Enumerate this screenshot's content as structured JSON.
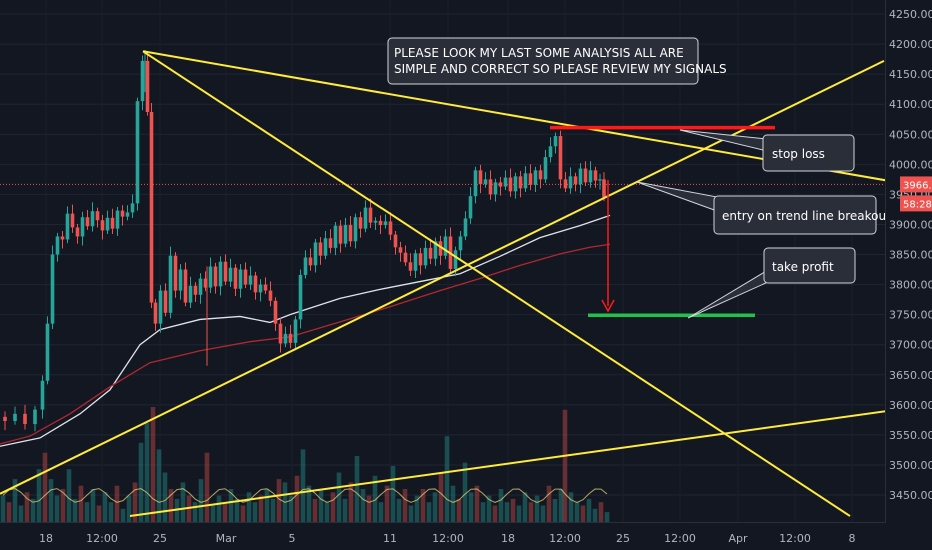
{
  "chart_data": {
    "type": "candlestick",
    "y_axis": {
      "ticks": [
        4250,
        4200,
        4150,
        4100,
        4050,
        4000,
        3950,
        3900,
        3850,
        3800,
        3750,
        3700,
        3650,
        3600,
        3550,
        3500,
        3450
      ],
      "ylim": [
        3415,
        4270
      ],
      "position": "right"
    },
    "x_axis": {
      "labels": [
        "18",
        "12:00",
        "25",
        "Mar",
        "5",
        "11",
        "12:00",
        "18",
        "12:00",
        "25",
        "12:00",
        "Apr",
        "12:00",
        "8"
      ]
    },
    "price_markers": [
      {
        "label": "3966.54",
        "value": 3966.54,
        "color": "#ef5350"
      },
      {
        "label": "58:28",
        "value": 3935,
        "color": "#ef5350"
      }
    ],
    "current_price": 3966.54,
    "trend_lines": [
      {
        "from": [
          143,
          4188
        ],
        "to": [
          932,
          3960
        ],
        "color": "#ffeb3b"
      },
      {
        "from": [
          143,
          4188
        ],
        "to": [
          850,
          3415
        ],
        "color": "#ffeb3b"
      },
      {
        "from": [
          0,
          3452
        ],
        "to": [
          884,
          4172
        ],
        "color": "#ffeb3b"
      },
      {
        "from": [
          130,
          3415
        ],
        "to": [
          932,
          3600
        ],
        "color": "#ffeb3b"
      }
    ],
    "levels": [
      {
        "name": "stop loss",
        "value": 4061,
        "color": "#ff1a1a",
        "x_range": [
          550,
          775
        ]
      },
      {
        "name": "take profit",
        "value": 3749,
        "color": "#22c24a",
        "x_range": [
          588,
          755
        ]
      }
    ],
    "moving_averages": [
      {
        "color": "#e0e3eb",
        "points": [
          [
            0,
            3531
          ],
          [
            40,
            3545
          ],
          [
            80,
            3585
          ],
          [
            110,
            3625
          ],
          [
            140,
            3700
          ],
          [
            160,
            3725
          ],
          [
            200,
            3742
          ],
          [
            240,
            3747
          ],
          [
            270,
            3737
          ],
          [
            290,
            3750
          ],
          [
            340,
            3777
          ],
          [
            380,
            3792
          ],
          [
            420,
            3805
          ],
          [
            460,
            3818
          ],
          [
            500,
            3847
          ],
          [
            540,
            3878
          ],
          [
            580,
            3898
          ],
          [
            610,
            3915
          ]
        ]
      },
      {
        "color": "#b2282e",
        "points": [
          [
            0,
            3535
          ],
          [
            30,
            3548
          ],
          [
            70,
            3585
          ],
          [
            110,
            3630
          ],
          [
            150,
            3670
          ],
          [
            200,
            3690
          ],
          [
            250,
            3705
          ],
          [
            290,
            3713
          ],
          [
            340,
            3738
          ],
          [
            390,
            3763
          ],
          [
            440,
            3790
          ],
          [
            480,
            3810
          ],
          [
            520,
            3832
          ],
          [
            560,
            3851
          ],
          [
            590,
            3862
          ],
          [
            610,
            3867
          ]
        ]
      }
    ],
    "price_path": [
      [
        0,
        3580
      ],
      [
        10,
        3573
      ],
      [
        20,
        3585
      ],
      [
        30,
        3568
      ],
      [
        40,
        3592
      ],
      [
        45,
        3640
      ],
      [
        50,
        3735
      ],
      [
        55,
        3850
      ],
      [
        60,
        3880
      ],
      [
        65,
        3875
      ],
      [
        70,
        3918
      ],
      [
        75,
        3895
      ],
      [
        80,
        3880
      ],
      [
        85,
        3912
      ],
      [
        90,
        3897
      ],
      [
        95,
        3922
      ],
      [
        100,
        3907
      ],
      [
        105,
        3890
      ],
      [
        110,
        3911
      ],
      [
        115,
        3893
      ],
      [
        120,
        3923
      ],
      [
        125,
        3913
      ],
      [
        130,
        3920
      ],
      [
        135,
        3935
      ],
      [
        140,
        4105
      ],
      [
        145,
        4172
      ],
      [
        150,
        4087
      ],
      [
        153,
        3770
      ],
      [
        158,
        3735
      ],
      [
        163,
        3790
      ],
      [
        168,
        3753
      ],
      [
        173,
        3848
      ],
      [
        178,
        3790
      ],
      [
        183,
        3825
      ],
      [
        188,
        3770
      ],
      [
        193,
        3798
      ],
      [
        198,
        3783
      ],
      [
        203,
        3810
      ],
      [
        208,
        3795
      ],
      [
        213,
        3830
      ],
      [
        218,
        3797
      ],
      [
        223,
        3838
      ],
      [
        228,
        3805
      ],
      [
        233,
        3828
      ],
      [
        238,
        3793
      ],
      [
        243,
        3825
      ],
      [
        248,
        3800
      ],
      [
        253,
        3815
      ],
      [
        258,
        3787
      ],
      [
        263,
        3800
      ],
      [
        268,
        3790
      ],
      [
        273,
        3773
      ],
      [
        278,
        3735
      ],
      [
        283,
        3702
      ],
      [
        288,
        3718
      ],
      [
        293,
        3703
      ],
      [
        298,
        3742
      ],
      [
        303,
        3816
      ],
      [
        308,
        3845
      ],
      [
        313,
        3832
      ],
      [
        318,
        3870
      ],
      [
        323,
        3848
      ],
      [
        328,
        3877
      ],
      [
        333,
        3861
      ],
      [
        338,
        3898
      ],
      [
        343,
        3868
      ],
      [
        348,
        3899
      ],
      [
        353,
        3872
      ],
      [
        358,
        3912
      ],
      [
        363,
        3893
      ],
      [
        368,
        3928
      ],
      [
        373,
        3903
      ],
      [
        378,
        3906
      ],
      [
        383,
        3899
      ],
      [
        388,
        3905
      ],
      [
        393,
        3883
      ],
      [
        398,
        3862
      ],
      [
        403,
        3853
      ],
      [
        408,
        3837
      ],
      [
        413,
        3823
      ],
      [
        418,
        3852
      ],
      [
        423,
        3832
      ],
      [
        428,
        3861
      ],
      [
        433,
        3843
      ],
      [
        438,
        3872
      ],
      [
        443,
        3848
      ],
      [
        448,
        3880
      ],
      [
        453,
        3826
      ],
      [
        458,
        3857
      ],
      [
        463,
        3880
      ],
      [
        468,
        3910
      ],
      [
        473,
        3947
      ],
      [
        478,
        3990
      ],
      [
        483,
        3967
      ],
      [
        488,
        3975
      ],
      [
        493,
        3950
      ],
      [
        498,
        3970
      ],
      [
        503,
        3963
      ],
      [
        508,
        3978
      ],
      [
        513,
        3955
      ],
      [
        518,
        3980
      ],
      [
        523,
        3960
      ],
      [
        528,
        3985
      ],
      [
        533,
        3966
      ],
      [
        538,
        3990
      ],
      [
        543,
        3975
      ],
      [
        548,
        4012
      ],
      [
        553,
        4030
      ],
      [
        558,
        4047
      ],
      [
        563,
        3975
      ],
      [
        568,
        3960
      ],
      [
        573,
        3980
      ],
      [
        578,
        3967
      ],
      [
        583,
        3993
      ],
      [
        588,
        3970
      ],
      [
        593,
        3990
      ],
      [
        598,
        3973
      ],
      [
        602,
        3975
      ],
      [
        606,
        3945
      ]
    ],
    "volume": [
      [
        3,
        0.8
      ],
      [
        9,
        0.6
      ],
      [
        15,
        1.3
      ],
      [
        21,
        0.5
      ],
      [
        27,
        0.9
      ],
      [
        33,
        0.7
      ],
      [
        39,
        1.6
      ],
      [
        45,
        2.1
      ],
      [
        51,
        1.3
      ],
      [
        57,
        0.8
      ],
      [
        63,
        1.0
      ],
      [
        69,
        1.6
      ],
      [
        75,
        0.7
      ],
      [
        81,
        1.1
      ],
      [
        87,
        0.6
      ],
      [
        93,
        1.0
      ],
      [
        99,
        0.5
      ],
      [
        105,
        0.9
      ],
      [
        111,
        0.6
      ],
      [
        117,
        1.1
      ],
      [
        123,
        0.4
      ],
      [
        129,
        0.8
      ],
      [
        135,
        1.2
      ],
      [
        141,
        2.4
      ],
      [
        147,
        3.0
      ],
      [
        153,
        3.5
      ],
      [
        159,
        2.2
      ],
      [
        165,
        1.5
      ],
      [
        171,
        1.0
      ],
      [
        177,
        0.7
      ],
      [
        183,
        1.2
      ],
      [
        189,
        0.8
      ],
      [
        195,
        0.6
      ],
      [
        201,
        1.3
      ],
      [
        207,
        2.1
      ],
      [
        213,
        0.5
      ],
      [
        219,
        0.8
      ],
      [
        225,
        0.6
      ],
      [
        231,
        1.0
      ],
      [
        237,
        0.7
      ],
      [
        243,
        0.5
      ],
      [
        249,
        0.9
      ],
      [
        255,
        0.6
      ],
      [
        261,
        0.8
      ],
      [
        267,
        1.0
      ],
      [
        273,
        0.7
      ],
      [
        279,
        1.3
      ],
      [
        285,
        1.2
      ],
      [
        291,
        0.8
      ],
      [
        297,
        1.4
      ],
      [
        303,
        2.2
      ],
      [
        309,
        1.1
      ],
      [
        315,
        0.7
      ],
      [
        321,
        1.0
      ],
      [
        327,
        0.6
      ],
      [
        333,
        0.9
      ],
      [
        339,
        1.5
      ],
      [
        345,
        0.7
      ],
      [
        351,
        1.2
      ],
      [
        357,
        2.0
      ],
      [
        363,
        1.0
      ],
      [
        369,
        0.8
      ],
      [
        375,
        1.4
      ],
      [
        381,
        0.6
      ],
      [
        387,
        1.1
      ],
      [
        393,
        1.7
      ],
      [
        399,
        0.7
      ],
      [
        405,
        1.0
      ],
      [
        411,
        0.5
      ],
      [
        417,
        0.8
      ],
      [
        423,
        1.0
      ],
      [
        429,
        0.6
      ],
      [
        435,
        0.9
      ],
      [
        441,
        1.5
      ],
      [
        447,
        2.6
      ],
      [
        453,
        1.1
      ],
      [
        459,
        0.7
      ],
      [
        465,
        1.8
      ],
      [
        471,
        0.9
      ],
      [
        477,
        1.1
      ],
      [
        483,
        0.6
      ],
      [
        489,
        0.8
      ],
      [
        495,
        0.5
      ],
      [
        501,
        1.0
      ],
      [
        507,
        0.6
      ],
      [
        513,
        0.7
      ],
      [
        519,
        0.5
      ],
      [
        525,
        0.9
      ],
      [
        531,
        0.6
      ],
      [
        537,
        0.8
      ],
      [
        543,
        0.5
      ],
      [
        549,
        1.1
      ],
      [
        555,
        0.7
      ],
      [
        561,
        1.0
      ],
      [
        565,
        3.4
      ],
      [
        571,
        0.9
      ],
      [
        577,
        0.6
      ],
      [
        583,
        0.5
      ],
      [
        589,
        0.7
      ],
      [
        595,
        0.4
      ],
      [
        601,
        0.6
      ],
      [
        607,
        0.3
      ]
    ]
  },
  "annotations": {
    "headline": [
      "PLEASE LOOK MY LAST SOME ANALYSIS ALL ARE",
      "SIMPLE AND CORRECT SO PLEASE REVIEW MY SIGNALS"
    ],
    "stop_loss": "stop loss",
    "entry": "entry on trend line breakout",
    "take_profit": "take profit"
  },
  "colors": {
    "background": "#131722",
    "up": "#26a69a",
    "down": "#ef5350",
    "trend": "#ffeb3b",
    "callout_bg": "#2a2e39"
  }
}
